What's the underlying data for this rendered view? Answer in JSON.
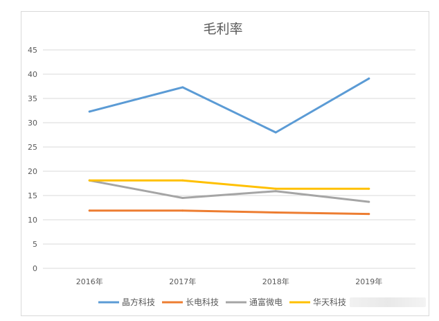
{
  "chart_data": {
    "type": "line",
    "title": "毛利率",
    "xlabel": "",
    "ylabel": "",
    "categories": [
      "2016年",
      "2017年",
      "2018年",
      "2019年"
    ],
    "ylim": [
      0,
      45
    ],
    "yticks": [
      0,
      5,
      10,
      15,
      20,
      25,
      30,
      35,
      40,
      45
    ],
    "grid": true,
    "legend_position": "bottom",
    "series": [
      {
        "name": "晶方科技",
        "color": "#5b9bd5",
        "values": [
          32.3,
          37.3,
          28.0,
          39.1
        ]
      },
      {
        "name": "长电科技",
        "color": "#ed7d31",
        "values": [
          11.9,
          11.9,
          11.5,
          11.2
        ]
      },
      {
        "name": "通富微电",
        "color": "#a5a5a5",
        "values": [
          18.1,
          14.5,
          15.9,
          13.7
        ]
      },
      {
        "name": "华天科技",
        "color": "#ffc000",
        "values": [
          18.1,
          18.1,
          16.4,
          16.4
        ]
      }
    ]
  }
}
